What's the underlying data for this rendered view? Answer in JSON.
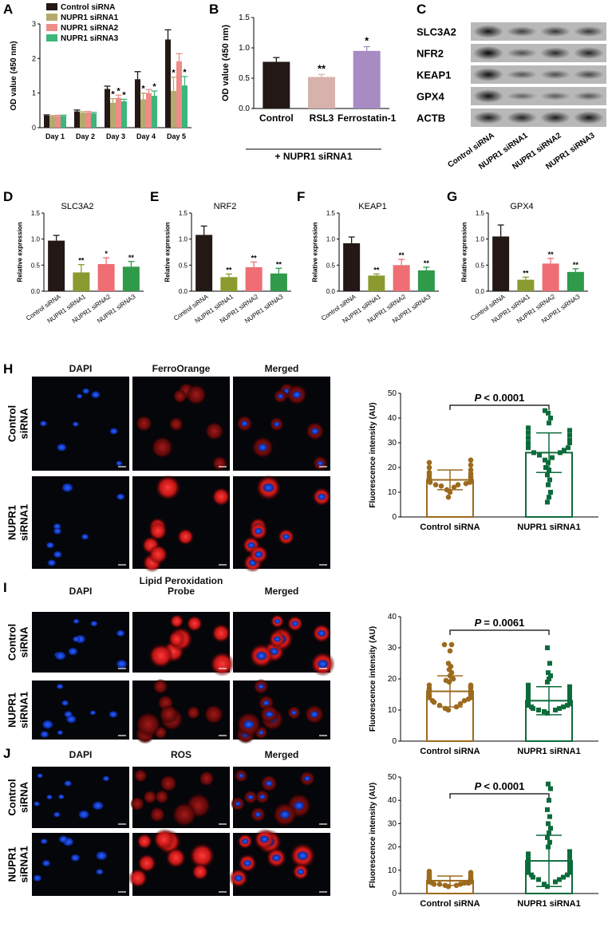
{
  "colors": {
    "control": "#231815",
    "nupr1_1": "#b5aa6e",
    "nupr1_2": "#ee8c88",
    "nupr1_3": "#3cb67a",
    "b_control": "#231815",
    "b_rsl3": "#d7b2ad",
    "b_fer": "#a78bc2",
    "dg_control": "#231815",
    "dg_1": "#8a9a2f",
    "dg_2": "#ee6e73",
    "dg_3": "#2e9a4a",
    "dot_ctrl": "#9c6a1e",
    "dot_nupr": "#0c6b3b"
  },
  "panel_letters": {
    "A": "A",
    "B": "B",
    "C": "C",
    "D": "D",
    "E": "E",
    "F": "F",
    "G": "G",
    "H": "H",
    "I": "I",
    "J": "J"
  },
  "chart_data": [
    {
      "id": "A",
      "type": "bar",
      "ylabel": "OD value (450 nm)",
      "ylim": [
        0,
        3
      ],
      "yticks": [
        "0",
        "1",
        "2",
        "3"
      ],
      "categories": [
        "Day 1",
        "Day 2",
        "Day 3",
        "Day 4",
        "Day 5"
      ],
      "legend": "top-left",
      "series": [
        {
          "name": "Control siRNA",
          "values": [
            0.35,
            0.47,
            1.12,
            1.4,
            2.55
          ],
          "err": [
            0.02,
            0.04,
            0.08,
            0.22,
            0.28
          ],
          "stars": [
            "",
            "",
            "",
            "",
            ""
          ]
        },
        {
          "name": "NUPR1 siRNA1",
          "values": [
            0.33,
            0.43,
            0.72,
            0.82,
            1.06
          ],
          "err": [
            0.02,
            0.03,
            0.12,
            0.18,
            0.4
          ],
          "stars": [
            "",
            "",
            "*",
            "*",
            "*"
          ]
        },
        {
          "name": "NUPR1 siRNA2",
          "values": [
            0.34,
            0.44,
            0.86,
            1.0,
            1.92
          ],
          "err": [
            0.02,
            0.03,
            0.08,
            0.1,
            0.22
          ],
          "stars": [
            "",
            "",
            "*",
            "",
            ""
          ]
        },
        {
          "name": "NUPR1 siRNA3",
          "values": [
            0.34,
            0.41,
            0.76,
            0.92,
            1.22
          ],
          "err": [
            0.02,
            0.03,
            0.06,
            0.14,
            0.26
          ],
          "stars": [
            "",
            "",
            "*",
            "*",
            "*"
          ]
        }
      ]
    },
    {
      "id": "B",
      "type": "bar",
      "ylabel": "OD value (450 nm)",
      "ylim": [
        0,
        1.5
      ],
      "yticks": [
        "0.0",
        "0.5",
        "1.0",
        "1.5"
      ],
      "categories": [
        "Control",
        "RSL3",
        "Ferrostatin-1"
      ],
      "group_label": "+ NUPR1 siRNA1",
      "values": [
        0.77,
        0.52,
        0.95
      ],
      "err": [
        0.07,
        0.04,
        0.07
      ],
      "stars": [
        "",
        "**",
        "*"
      ]
    },
    {
      "id": "C",
      "type": "table",
      "rows": [
        "SLC3A2",
        "NFR2",
        "KEAP1",
        "GPX4",
        "ACTB"
      ],
      "columns": [
        "Control siRNA",
        "NUPR1 siRNA1",
        "NUPR1 siRNA2",
        "NUPR1 siRNA3"
      ],
      "band_intensity": [
        [
          0.85,
          0.55,
          0.6,
          0.6
        ],
        [
          0.95,
          0.45,
          0.7,
          0.75
        ],
        [
          0.9,
          0.4,
          0.45,
          0.5
        ],
        [
          0.9,
          0.3,
          0.35,
          0.4
        ],
        [
          0.8,
          0.75,
          0.8,
          0.85
        ]
      ]
    },
    {
      "id": "D",
      "type": "bar",
      "title": "SLC3A2",
      "ylabel": "Relative expression",
      "ylim": [
        0,
        1.5
      ],
      "yticks": [
        "0.0",
        "0.5",
        "1.0",
        "1.5"
      ],
      "categories": [
        "Control siRNA",
        "NUPR1 siRNA1",
        "NUPR1 siRNA2",
        "NUPR1 siRNA3"
      ],
      "values": [
        0.97,
        0.36,
        0.52,
        0.47
      ],
      "err": [
        0.1,
        0.15,
        0.12,
        0.1
      ],
      "stars": [
        "",
        "**",
        "*",
        "**"
      ]
    },
    {
      "id": "E",
      "type": "bar",
      "title": "NRF2",
      "ylabel": "Relative expression",
      "ylim": [
        0,
        1.5
      ],
      "yticks": [
        "0.0",
        "0.5",
        "1.0",
        "1.5"
      ],
      "categories": [
        "Control siRNA",
        "NUPR1 siRNA1",
        "NUPR1 siRNA2",
        "NUPR1 siRNA3"
      ],
      "values": [
        1.08,
        0.27,
        0.46,
        0.34
      ],
      "err": [
        0.17,
        0.06,
        0.1,
        0.1
      ],
      "stars": [
        "",
        "**",
        "**",
        "**"
      ]
    },
    {
      "id": "F",
      "type": "bar",
      "title": "KEAP1",
      "ylabel": "Relative expression",
      "ylim": [
        0,
        1.5
      ],
      "yticks": [
        "0.0",
        "0.5",
        "1.0",
        "1.5"
      ],
      "categories": [
        "Control siRNA",
        "NUPR1 siRNA1",
        "NUPR1 siRNA2",
        "NUPR1 siRNA3"
      ],
      "values": [
        0.92,
        0.3,
        0.5,
        0.4
      ],
      "err": [
        0.12,
        0.03,
        0.11,
        0.06
      ],
      "stars": [
        "",
        "**",
        "**",
        "**"
      ]
    },
    {
      "id": "G",
      "type": "bar",
      "title": "GPX4",
      "ylabel": "Relative expression",
      "ylim": [
        0,
        1.5
      ],
      "yticks": [
        "0.0",
        "0.5",
        "1.0",
        "1.5"
      ],
      "categories": [
        "Control siRNA",
        "NUPR1 siRNA1",
        "NUPR1 siRNA2",
        "NUPR1 siRNA3"
      ],
      "values": [
        1.05,
        0.22,
        0.53,
        0.37
      ],
      "err": [
        0.22,
        0.05,
        0.1,
        0.06
      ],
      "stars": [
        "",
        "**",
        "**",
        "**"
      ]
    },
    {
      "id": "H",
      "type": "scatter",
      "ylabel": "Fluorescence intensity (AU)",
      "ylim": [
        0,
        50
      ],
      "yticks": [
        "0",
        "10",
        "20",
        "30",
        "40",
        "50"
      ],
      "categories": [
        "Control siRNA",
        "NUPR1 siRNA1"
      ],
      "pvalue": "< 0.0001",
      "means": [
        15.0,
        26.0
      ],
      "sd": [
        4.0,
        8.0
      ],
      "points": [
        [
          8,
          10,
          11,
          12,
          12.5,
          13,
          13,
          13.5,
          14,
          14,
          14.5,
          15,
          15,
          15,
          15.5,
          16,
          16,
          16.5,
          17,
          17.5,
          18,
          19,
          20,
          21,
          22,
          23
        ],
        [
          6,
          8,
          10,
          13,
          15,
          17,
          19,
          20,
          22,
          23,
          24,
          25,
          26,
          26,
          27,
          28,
          28,
          29,
          30,
          30,
          31,
          32,
          33,
          34,
          35,
          36,
          38,
          40,
          42,
          43
        ]
      ]
    },
    {
      "id": "I",
      "type": "scatter",
      "ylabel": "Fluorescence intensity (AU)",
      "ylim": [
        0,
        40
      ],
      "yticks": [
        "0",
        "10",
        "20",
        "30",
        "40"
      ],
      "categories": [
        "Control siRNA",
        "NUPR1 siRNA1"
      ],
      "pvalue": "= 0.0061",
      "means": [
        16.0,
        13.0
      ],
      "sd": [
        5.0,
        4.5
      ],
      "points": [
        [
          10,
          10.5,
          11,
          11.5,
          12,
          12.5,
          13,
          13,
          13.5,
          14,
          14,
          14.5,
          15,
          15,
          15.5,
          16,
          16,
          16.5,
          17,
          17,
          17.5,
          18,
          18,
          19,
          19.5,
          20,
          21,
          22,
          23,
          24,
          25,
          29,
          31,
          31
        ],
        [
          9,
          9.5,
          10,
          10,
          10.5,
          10.5,
          11,
          11,
          11.5,
          11.5,
          12,
          12,
          12,
          12.5,
          12.5,
          13,
          13,
          13,
          13.5,
          14,
          14,
          14.5,
          15,
          15,
          15.5,
          16,
          16.5,
          17,
          17.5,
          18,
          19,
          20,
          21,
          22,
          25,
          30
        ]
      ]
    },
    {
      "id": "J",
      "type": "scatter",
      "ylabel": "Fluorescence intensity (AU)",
      "ylim": [
        0,
        50
      ],
      "yticks": [
        "0",
        "10",
        "20",
        "30",
        "40",
        "50"
      ],
      "categories": [
        "Control siRNA",
        "NUPR1 siRNA1"
      ],
      "pvalue": "< 0.0001",
      "means": [
        5.5,
        14.0
      ],
      "sd": [
        2.0,
        11.0
      ],
      "points": [
        [
          3,
          3.5,
          3.5,
          4,
          4,
          4,
          4.5,
          4.5,
          4.5,
          5,
          5,
          5,
          5,
          5.5,
          5.5,
          5.5,
          6,
          6,
          6,
          6.5,
          6.5,
          7,
          7,
          7.5,
          8,
          8.5,
          9,
          9.5
        ],
        [
          3,
          4,
          5,
          6,
          6,
          7,
          7,
          8,
          8,
          9,
          9,
          10,
          10,
          11,
          11,
          12,
          12,
          13,
          14,
          15,
          16,
          17,
          18,
          20,
          22,
          24,
          26,
          28,
          30,
          33,
          36,
          40,
          45,
          47
        ]
      ]
    }
  ],
  "micro": {
    "H": {
      "cols": [
        "DAPI",
        "FerroOrange",
        "Merged"
      ],
      "rows": [
        "Control\nsiRNA",
        "NUPR1\nsiRNA1"
      ]
    },
    "I": {
      "cols": [
        "DAPI",
        "Lipid Peroxidation\nProbe",
        "Merged"
      ],
      "rows": [
        "Control\nsiRNA",
        "NUPR1\nsiRNA1"
      ]
    },
    "J": {
      "cols": [
        "DAPI",
        "ROS",
        "Merged"
      ],
      "rows": [
        "Control\nsiRNA",
        "NUPR1\nsiRNA1"
      ]
    }
  }
}
